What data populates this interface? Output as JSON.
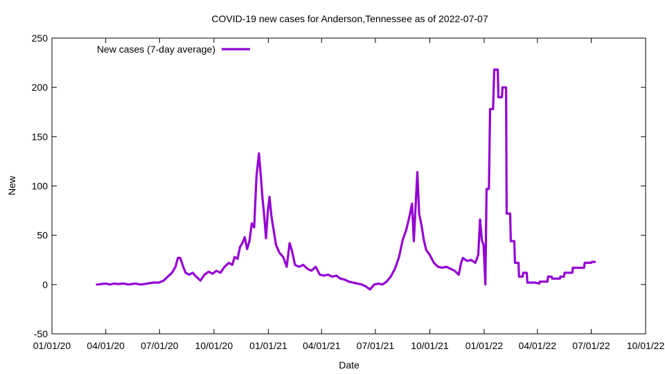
{
  "chart_data": {
    "type": "line",
    "title": "COVID-19 new cases for Anderson,Tennessee as of 2022-07-07",
    "xlabel": "Date",
    "ylabel": "New",
    "xlim": [
      "2020-01-01",
      "2022-10-01"
    ],
    "ylim": [
      -50,
      250
    ],
    "x_ticks": [
      {
        "date": "2020-01-01",
        "label": "01/01/20"
      },
      {
        "date": "2020-04-01",
        "label": "04/01/20"
      },
      {
        "date": "2020-07-01",
        "label": "07/01/20"
      },
      {
        "date": "2020-10-01",
        "label": "10/01/20"
      },
      {
        "date": "2021-01-01",
        "label": "01/01/21"
      },
      {
        "date": "2021-04-01",
        "label": "04/01/21"
      },
      {
        "date": "2021-07-01",
        "label": "07/01/21"
      },
      {
        "date": "2021-10-01",
        "label": "10/01/21"
      },
      {
        "date": "2022-01-01",
        "label": "01/01/22"
      },
      {
        "date": "2022-04-01",
        "label": "04/01/22"
      },
      {
        "date": "2022-07-01",
        "label": "07/01/22"
      },
      {
        "date": "2022-10-01",
        "label": "10/01/22"
      }
    ],
    "y_ticks": [
      -50,
      0,
      50,
      100,
      150,
      200,
      250
    ],
    "grid": false,
    "legend_position": "top-left",
    "series": [
      {
        "name": "New cases (7-day average)",
        "color": "#9400d3",
        "points": [
          [
            "2020-03-17",
            0
          ],
          [
            "2020-03-25",
            0.5
          ],
          [
            "2020-04-01",
            1
          ],
          [
            "2020-04-08",
            0
          ],
          [
            "2020-04-15",
            1
          ],
          [
            "2020-04-22",
            0.5
          ],
          [
            "2020-05-01",
            1
          ],
          [
            "2020-05-10",
            0
          ],
          [
            "2020-05-20",
            1
          ],
          [
            "2020-05-31",
            0
          ],
          [
            "2020-06-10",
            1
          ],
          [
            "2020-06-20",
            2
          ],
          [
            "2020-06-30",
            2
          ],
          [
            "2020-07-08",
            4
          ],
          [
            "2020-07-15",
            8
          ],
          [
            "2020-07-22",
            12
          ],
          [
            "2020-07-28",
            18
          ],
          [
            "2020-08-01",
            27
          ],
          [
            "2020-08-05",
            27
          ],
          [
            "2020-08-10",
            18
          ],
          [
            "2020-08-14",
            12
          ],
          [
            "2020-08-20",
            10
          ],
          [
            "2020-08-26",
            12
          ],
          [
            "2020-09-01",
            8
          ],
          [
            "2020-09-08",
            4
          ],
          [
            "2020-09-15",
            10
          ],
          [
            "2020-09-22",
            13
          ],
          [
            "2020-09-29",
            11
          ],
          [
            "2020-10-05",
            14
          ],
          [
            "2020-10-12",
            12
          ],
          [
            "2020-10-19",
            18
          ],
          [
            "2020-10-26",
            22
          ],
          [
            "2020-11-01",
            20
          ],
          [
            "2020-11-05",
            28
          ],
          [
            "2020-11-10",
            26
          ],
          [
            "2020-11-14",
            38
          ],
          [
            "2020-11-18",
            42
          ],
          [
            "2020-11-22",
            48
          ],
          [
            "2020-11-26",
            36
          ],
          [
            "2020-11-30",
            44
          ],
          [
            "2020-12-04",
            62
          ],
          [
            "2020-12-08",
            58
          ],
          [
            "2020-12-12",
            110
          ],
          [
            "2020-12-16",
            133
          ],
          [
            "2020-12-19",
            112
          ],
          [
            "2020-12-22",
            88
          ],
          [
            "2020-12-25",
            70
          ],
          [
            "2020-12-28",
            47
          ],
          [
            "2020-12-31",
            74
          ],
          [
            "2021-01-03",
            89
          ],
          [
            "2021-01-06",
            70
          ],
          [
            "2021-01-10",
            55
          ],
          [
            "2021-01-14",
            40
          ],
          [
            "2021-01-20",
            32
          ],
          [
            "2021-01-26",
            28
          ],
          [
            "2021-02-01",
            18
          ],
          [
            "2021-02-06",
            42
          ],
          [
            "2021-02-10",
            34
          ],
          [
            "2021-02-15",
            20
          ],
          [
            "2021-02-22",
            18
          ],
          [
            "2021-03-01",
            20
          ],
          [
            "2021-03-08",
            16
          ],
          [
            "2021-03-15",
            14
          ],
          [
            "2021-03-22",
            18
          ],
          [
            "2021-03-29",
            10
          ],
          [
            "2021-04-05",
            9
          ],
          [
            "2021-04-12",
            10
          ],
          [
            "2021-04-19",
            8
          ],
          [
            "2021-04-26",
            9
          ],
          [
            "2021-05-03",
            6
          ],
          [
            "2021-05-10",
            5
          ],
          [
            "2021-05-17",
            3
          ],
          [
            "2021-05-24",
            2
          ],
          [
            "2021-06-01",
            1
          ],
          [
            "2021-06-08",
            0
          ],
          [
            "2021-06-15",
            -2
          ],
          [
            "2021-06-22",
            -5
          ],
          [
            "2021-06-29",
            0
          ],
          [
            "2021-07-06",
            1
          ],
          [
            "2021-07-13",
            0
          ],
          [
            "2021-07-20",
            3
          ],
          [
            "2021-07-27",
            8
          ],
          [
            "2021-08-03",
            16
          ],
          [
            "2021-08-10",
            28
          ],
          [
            "2021-08-16",
            45
          ],
          [
            "2021-08-22",
            55
          ],
          [
            "2021-08-28",
            70
          ],
          [
            "2021-09-01",
            82
          ],
          [
            "2021-09-04",
            44
          ],
          [
            "2021-09-07",
            80
          ],
          [
            "2021-09-10",
            114
          ],
          [
            "2021-09-13",
            72
          ],
          [
            "2021-09-17",
            60
          ],
          [
            "2021-09-21",
            45
          ],
          [
            "2021-09-25",
            35
          ],
          [
            "2021-10-01",
            30
          ],
          [
            "2021-10-08",
            22
          ],
          [
            "2021-10-15",
            18
          ],
          [
            "2021-10-22",
            17
          ],
          [
            "2021-10-29",
            18
          ],
          [
            "2021-11-05",
            16
          ],
          [
            "2021-11-12",
            14
          ],
          [
            "2021-11-19",
            10
          ],
          [
            "2021-11-23",
            22
          ],
          [
            "2021-11-26",
            27
          ],
          [
            "2021-12-03",
            24
          ],
          [
            "2021-12-10",
            25
          ],
          [
            "2021-12-17",
            22
          ],
          [
            "2021-12-22",
            30
          ],
          [
            "2021-12-25",
            66
          ],
          [
            "2021-12-28",
            45
          ],
          [
            "2021-12-31",
            40
          ],
          [
            "2022-01-03",
            0
          ],
          [
            "2022-01-05",
            97
          ],
          [
            "2022-01-09",
            97
          ],
          [
            "2022-01-11",
            178
          ],
          [
            "2022-01-16",
            178
          ],
          [
            "2022-01-18",
            218
          ],
          [
            "2022-01-24",
            218
          ],
          [
            "2022-01-25",
            190
          ],
          [
            "2022-01-31",
            190
          ],
          [
            "2022-02-01",
            200
          ],
          [
            "2022-02-07",
            200
          ],
          [
            "2022-02-08",
            72
          ],
          [
            "2022-02-14",
            72
          ],
          [
            "2022-02-15",
            44
          ],
          [
            "2022-02-21",
            44
          ],
          [
            "2022-02-22",
            22
          ],
          [
            "2022-02-28",
            22
          ],
          [
            "2022-03-01",
            8
          ],
          [
            "2022-03-07",
            8
          ],
          [
            "2022-03-08",
            12
          ],
          [
            "2022-03-14",
            12
          ],
          [
            "2022-03-15",
            2
          ],
          [
            "2022-03-28",
            2
          ],
          [
            "2022-04-04",
            1
          ],
          [
            "2022-04-05",
            3
          ],
          [
            "2022-04-18",
            3
          ],
          [
            "2022-04-19",
            8
          ],
          [
            "2022-04-25",
            8
          ],
          [
            "2022-04-26",
            6
          ],
          [
            "2022-05-09",
            6
          ],
          [
            "2022-05-10",
            8
          ],
          [
            "2022-05-16",
            8
          ],
          [
            "2022-05-17",
            12
          ],
          [
            "2022-05-30",
            12
          ],
          [
            "2022-05-31",
            17
          ],
          [
            "2022-06-19",
            17
          ],
          [
            "2022-06-20",
            22
          ],
          [
            "2022-07-01",
            22
          ],
          [
            "2022-07-02",
            23
          ],
          [
            "2022-07-07",
            23
          ]
        ]
      }
    ]
  }
}
